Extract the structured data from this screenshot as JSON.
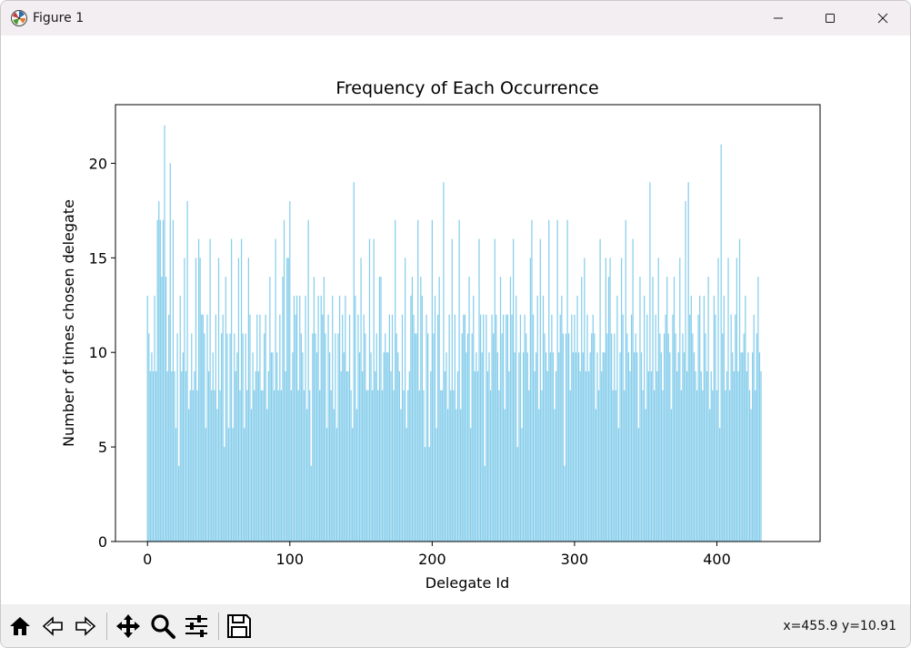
{
  "window": {
    "title": "Figure 1",
    "buttons": [
      "minimize",
      "maximize",
      "close"
    ]
  },
  "toolbar": {
    "buttons": [
      {
        "name": "home-button",
        "icon": "home-icon"
      },
      {
        "name": "back-button",
        "icon": "back-arrow-icon"
      },
      {
        "name": "forward-button",
        "icon": "forward-arrow-icon"
      },
      {
        "name": "pan-button",
        "icon": "move-icon"
      },
      {
        "name": "zoom-button",
        "icon": "magnifier-icon"
      },
      {
        "name": "configure-subplots-button",
        "icon": "sliders-icon"
      },
      {
        "name": "save-button",
        "icon": "floppy-disk-icon"
      }
    ],
    "coords": "x=455.9 y=10.91"
  },
  "chart_data": {
    "type": "bar",
    "title": "Frequency of Each Occurrence",
    "xlabel": "Delegate Id",
    "ylabel": "Number of times chosen delegate",
    "bar_color": "#87ceeb",
    "xlim": [
      -22.5,
      472.5
    ],
    "ylim": [
      0,
      23.1
    ],
    "xticks": [
      0,
      100,
      200,
      300,
      400
    ],
    "yticks": [
      0,
      5,
      10,
      15,
      20
    ],
    "grid": false,
    "legend": "none",
    "x_start": 0,
    "values": [
      13,
      11,
      9,
      10,
      9,
      13,
      9,
      17,
      18,
      17,
      14,
      17,
      22,
      14,
      9,
      12,
      20,
      9,
      17,
      9,
      6,
      11,
      4,
      13,
      9,
      10,
      15,
      9,
      18,
      7,
      8,
      11,
      8,
      9,
      15,
      8,
      16,
      15,
      12,
      12,
      11,
      6,
      12,
      9,
      16,
      8,
      10,
      8,
      12,
      7,
      15,
      8,
      11,
      12,
      5,
      14,
      11,
      6,
      11,
      16,
      6,
      11,
      9,
      10,
      15,
      8,
      16,
      11,
      6,
      11,
      8,
      15,
      12,
      7,
      10,
      8,
      9,
      12,
      9,
      12,
      8,
      8,
      11,
      12,
      7,
      9,
      14,
      10,
      10,
      8,
      16,
      10,
      8,
      12,
      8,
      14,
      17,
      9,
      15,
      15,
      18,
      8,
      10,
      13,
      12,
      13,
      8,
      13,
      11,
      10,
      8,
      13,
      7,
      17,
      8,
      4,
      11,
      14,
      11,
      10,
      13,
      8,
      13,
      12,
      14,
      11,
      6,
      12,
      10,
      8,
      13,
      7,
      11,
      6,
      11,
      13,
      9,
      12,
      10,
      13,
      9,
      9,
      12,
      8,
      6,
      19,
      13,
      7,
      12,
      10,
      15,
      9,
      12,
      11,
      8,
      8,
      16,
      10,
      8,
      16,
      9,
      11,
      8,
      14,
      14,
      8,
      10,
      11,
      10,
      10,
      12,
      9,
      12,
      8,
      17,
      11,
      10,
      9,
      7,
      12,
      8,
      15,
      6,
      8,
      9,
      13,
      14,
      12,
      11,
      11,
      17,
      8,
      14,
      13,
      8,
      5,
      12,
      11,
      5,
      9,
      17,
      11,
      13,
      6,
      12,
      14,
      8,
      8,
      19,
      9,
      10,
      7,
      12,
      8,
      16,
      8,
      12,
      7,
      9,
      17,
      7,
      11,
      12,
      12,
      10,
      11,
      14,
      6,
      11,
      13,
      9,
      10,
      9,
      16,
      12,
      10,
      12,
      4,
      12,
      9,
      10,
      8,
      12,
      11,
      16,
      12,
      10,
      8,
      14,
      11,
      12,
      7,
      12,
      12,
      9,
      14,
      12,
      16,
      10,
      13,
      5,
      10,
      12,
      6,
      10,
      12,
      11,
      10,
      8,
      15,
      17,
      12,
      9,
      10,
      13,
      7,
      16,
      8,
      13,
      11,
      10,
      9,
      17,
      10,
      12,
      10,
      7,
      9,
      17,
      10,
      12,
      13,
      11,
      4,
      11,
      17,
      11,
      8,
      12,
      10,
      12,
      10,
      13,
      10,
      9,
      14,
      10,
      15,
      9,
      12,
      9,
      10,
      11,
      12,
      11,
      7,
      10,
      8,
      16,
      9,
      10,
      10,
      15,
      11,
      14,
      15,
      11,
      8,
      11,
      8,
      13,
      6,
      10,
      15,
      12,
      8,
      17,
      11,
      10,
      9,
      12,
      16,
      10,
      11,
      10,
      6,
      14,
      10,
      8,
      13,
      7,
      12,
      9,
      19,
      9,
      14,
      8,
      12,
      9,
      15,
      11,
      10,
      8,
      11,
      12,
      14,
      11,
      10,
      7,
      12,
      14,
      11,
      9,
      10,
      15,
      8,
      11,
      10,
      18,
      9,
      19,
      12,
      13,
      11,
      10,
      9,
      8,
      12,
      13,
      9,
      8,
      13,
      11,
      9,
      14,
      7,
      9,
      8,
      13,
      12,
      8,
      15,
      6,
      21,
      11,
      13,
      8,
      9,
      15,
      8,
      12,
      10,
      9,
      12,
      15,
      9,
      16,
      10,
      10,
      11,
      13,
      9,
      10,
      8,
      7,
      10,
      12,
      8,
      11,
      14,
      10,
      9
    ]
  }
}
